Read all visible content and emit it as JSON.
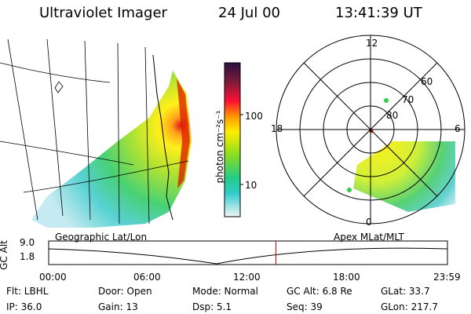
{
  "header": {
    "title": "Ultraviolet Imager",
    "date": "24 Jul 00",
    "time": "13:41:39 UT"
  },
  "left_panel": {
    "caption": "Geographic Lat/Lon"
  },
  "colorbar": {
    "unit_label": "photon cm⁻²s⁻¹",
    "ticks": [
      "100",
      "10"
    ]
  },
  "polar_panel": {
    "caption": "Apex MLat/MLT",
    "mlt_labels": {
      "top": "12",
      "left": "18",
      "right": "6",
      "bottom": "0"
    },
    "lat_labels": [
      "80",
      "70",
      "60"
    ]
  },
  "timeline": {
    "axis_label": "GC Alt",
    "y_ticks": [
      "9.0",
      "1.8"
    ],
    "x_ticks": [
      "00:00",
      "06:00",
      "12:00",
      "18:00",
      "23:59"
    ],
    "current_time_fraction": 0.57,
    "line_color": "#cc0000"
  },
  "footer": {
    "row1": {
      "flt": "Flt: LBHL",
      "door": "Door: Open",
      "mode": "Mode: Normal",
      "gcalt": "GC Alt: 6.8 Re",
      "glat": "GLat:  33.7"
    },
    "row2": {
      "ip": "IP: 36.0",
      "gain": "Gain: 13",
      "dsp": "Dsp:    5.1",
      "seq": "Seq: 39",
      "glon": "GLon: 217.7"
    }
  }
}
